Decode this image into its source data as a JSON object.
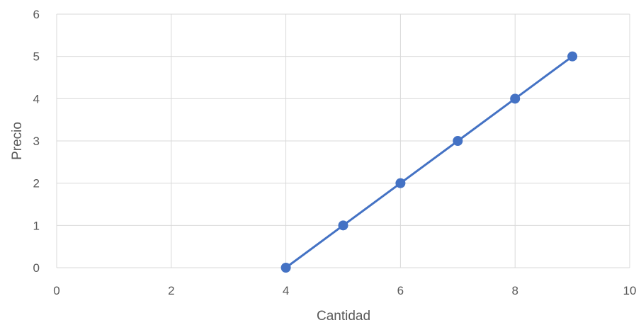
{
  "chart_data": {
    "type": "scatter",
    "title": "",
    "xlabel": "Cantidad",
    "ylabel": "Precio",
    "xlim": [
      0,
      10
    ],
    "ylim": [
      0,
      6
    ],
    "x_ticks": [
      0,
      2,
      4,
      6,
      8,
      10
    ],
    "y_ticks": [
      0,
      1,
      2,
      3,
      4,
      5,
      6
    ],
    "grid": true,
    "legend": "none",
    "series": [
      {
        "color": "#4472C4",
        "style": "line-with-markers",
        "x": [
          4,
          5,
          6,
          7,
          8,
          9
        ],
        "y": [
          0,
          1,
          2,
          3,
          4,
          5
        ]
      }
    ],
    "colors": {
      "grid": "#D9D9D9",
      "text": "#595959",
      "series": "#4472C4"
    }
  }
}
